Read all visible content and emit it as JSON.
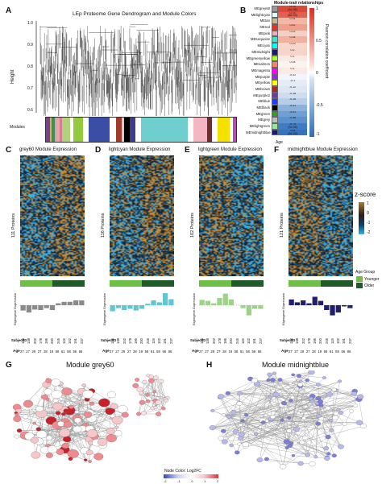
{
  "panels": {
    "A": "A",
    "B": "B",
    "C": "C",
    "D": "D",
    "E": "E",
    "F": "F",
    "G": "G",
    "H": "H"
  },
  "dendro": {
    "title": "LEp Proteome Gene Dendrogram and Module Colors",
    "ylabel": "Height",
    "yticks": [
      "1.0",
      "0.9",
      "0.8",
      "0.7",
      "0.6"
    ],
    "modules_label": "Modules",
    "module_colors": [
      "#7a3f93",
      "#c8b26b",
      "#4b8d3a",
      "#9bb7d6",
      "#e9a79a",
      "#d77b9a",
      "#b1d27a",
      "#ffffff",
      "#94c83d",
      "#ffffff",
      "#3b4ea6",
      "#ffffff",
      "#a03a2a",
      "#d0d0d0",
      "#000000",
      "#3d3d8a",
      "#ffffff",
      "#6fcfcf",
      "#6fcfcf",
      "#ffffff",
      "#f4b6c2",
      "#6b2e2e",
      "#ffffff",
      "#f5e000",
      "#ffffff",
      "#b04db0"
    ]
  },
  "mtr": {
    "title": "Module-trait relationships",
    "xlabel": "Age",
    "colorbar_label": "Pearson correlation coefficient",
    "cb_ticks": [
      "1",
      "0.5",
      "0",
      "-0.5",
      "-1"
    ],
    "rows": [
      {
        "name": "MEgrey60",
        "color": "#999999",
        "val": "0.79\n(1e-06)",
        "fill": "#d9493a"
      },
      {
        "name": "MElightcyan",
        "color": "#e0ffff",
        "val": "0.75\n(6e-03)",
        "fill": "#e2604f"
      },
      {
        "name": "MEtan",
        "color": "#d2b48c",
        "val": "0.31",
        "fill": "#f1b8a8"
      },
      {
        "name": "MEred",
        "color": "#e4332b",
        "val": "0.42",
        "fill": "#eea08c"
      },
      {
        "name": "MEpink",
        "color": "#f7a7c4",
        "val": "0.22",
        "fill": "#f6cfc4"
      },
      {
        "name": "MEturquoise",
        "color": "#40e0d0",
        "val": "0.34",
        "fill": "#f0b19f"
      },
      {
        "name": "MEcyan",
        "color": "#00ffff",
        "val": "0.19",
        "fill": "#f7d6cc"
      },
      {
        "name": "MEmidnight",
        "color": "#191970",
        "val": "0.2",
        "fill": "#f7d4c9"
      },
      {
        "name": "MEgreenyellow",
        "color": "#adff2f",
        "val": "0.1",
        "fill": "#faeae5"
      },
      {
        "name": "MEsalmon",
        "color": "#fa8072",
        "val": "0.04",
        "fill": "#fbf3f0"
      },
      {
        "name": "MEmagenta",
        "color": "#ff00ff",
        "val": "0.1",
        "fill": "#faeae5"
      },
      {
        "name": "MEpurple",
        "color": "#a020f0",
        "val": "-0.02",
        "fill": "#f3f5fa"
      },
      {
        "name": "MEyellow",
        "color": "#ffff00",
        "val": "-0.1",
        "fill": "#e5ecf6"
      },
      {
        "name": "MEbrown",
        "color": "#a52a2a",
        "val": "-0.12",
        "fill": "#dde6f3"
      },
      {
        "name": "MEpurple2",
        "color": "#6a3d9a",
        "val": "-0.18",
        "fill": "#cfdcee"
      },
      {
        "name": "MEblue",
        "color": "#1f3bff",
        "val": "-0.26",
        "fill": "#b7cde8"
      },
      {
        "name": "MEblack",
        "color": "#000000",
        "val": "-0.41",
        "fill": "#8cb2dc"
      },
      {
        "name": "MEgreen",
        "color": "#2ca02c",
        "val": "-0.51",
        "fill": "#6f9fd3"
      },
      {
        "name": "MEgrey",
        "color": "#bebebe",
        "val": "-0.58",
        "fill": "#5b92cd"
      },
      {
        "name": "MElightgreen",
        "color": "#90ee90",
        "val": "-0.74\n(7e-03)",
        "fill": "#3f7cc2"
      },
      {
        "name": "MEmidnightblue",
        "color": "#191970",
        "val": "-0.8\n(3e-03)",
        "fill": "#3573bd"
      }
    ]
  },
  "heatmaps": [
    {
      "letter": "C",
      "title": "grey60 Module Expression",
      "ylabel": "111 Proteins",
      "barcolor": "#8a8a8a",
      "values": [
        -0.22,
        -0.3,
        -0.18,
        -0.2,
        -0.12,
        -0.2,
        0.08,
        0.14,
        0.14,
        0.2,
        0.2
      ]
    },
    {
      "letter": "D",
      "title": "lightcyan Module Expression",
      "ylabel": "116 Proteins",
      "barcolor": "#5fc6d3",
      "values": [
        -0.25,
        -0.12,
        -0.2,
        -0.15,
        -0.22,
        -0.15,
        0.06,
        0.2,
        0.12,
        0.5,
        0.25
      ]
    },
    {
      "letter": "E",
      "title": "lightgreen Module Expression",
      "ylabel": "102 Proteins",
      "barcolor": "#9ed18a",
      "values": [
        0.22,
        0.18,
        0.08,
        0.3,
        0.48,
        0.24,
        0.0,
        -0.12,
        -0.42,
        -0.15,
        -0.15
      ]
    },
    {
      "letter": "F",
      "title": "midnightblue Module Expression",
      "ylabel": "121 Proteins",
      "barcolor": "#1f1f6e",
      "values": [
        0.24,
        0.12,
        0.2,
        0.08,
        0.35,
        0.18,
        -0.2,
        -0.42,
        -0.3,
        -0.05,
        -0.12
      ]
    }
  ],
  "eigen_ylabel": "Eigengene Expression",
  "subject_label": "SubjectID",
  "age_label": "Age",
  "subjects": [
    "124",
    "138",
    "202",
    "178",
    "195",
    "200",
    "245",
    "119",
    "102",
    "191",
    "237"
  ],
  "ages": [
    "27",
    "27",
    "29",
    "27",
    "28",
    "19",
    "58",
    "61",
    "58",
    "56",
    "66"
  ],
  "zscore": {
    "label": "z-score",
    "ticks": [
      "1",
      "0",
      "-1",
      "-2"
    ]
  },
  "agegroup": {
    "title": "Age Group",
    "young": "Younger",
    "old": "Older",
    "young_color": "#6dbf45",
    "old_color": "#1f5c2a"
  },
  "networks": [
    {
      "letter": "G",
      "title": "Module grey60"
    },
    {
      "letter": "H",
      "title": "Module midnightblue"
    }
  ],
  "node_legend": {
    "title": "Node Color: Log2FC",
    "ticks": [
      "-2",
      "-1",
      "0",
      "1",
      "2"
    ]
  }
}
